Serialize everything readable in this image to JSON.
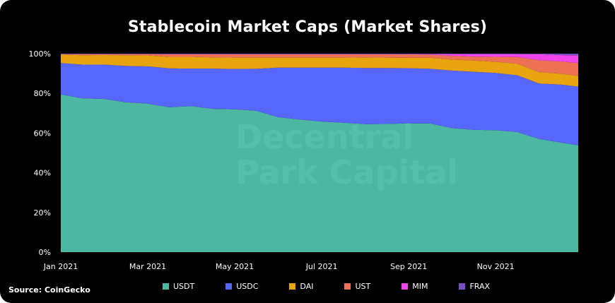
{
  "chart_data": {
    "type": "area",
    "stacked": true,
    "title": "Stablecoin Market Caps (Market Shares)",
    "source": "Source: CoinGecko",
    "watermark": [
      "Decentral",
      "Park Capital"
    ],
    "xlabel": "",
    "ylabel": "",
    "ylim": [
      0,
      100
    ],
    "y_ticks": [
      "0%",
      "20%",
      "40%",
      "60%",
      "80%",
      "100%"
    ],
    "x_tick_labels": [
      "Jan 2021",
      "Mar 2021",
      "May 2021",
      "Jul 2021",
      "Sep 2021",
      "Nov 2021"
    ],
    "x_tick_positions": [
      0,
      2,
      4,
      6,
      8,
      10
    ],
    "x": [
      0,
      0.5,
      1,
      1.5,
      2,
      2.5,
      3,
      3.5,
      4,
      4.5,
      5,
      5.5,
      6,
      6.5,
      7,
      7.5,
      8,
      8.5,
      9,
      9.5,
      10,
      10.5,
      11,
      11.5,
      11.9
    ],
    "series": [
      {
        "name": "USDT",
        "color": "#4db8a2",
        "values": [
          79.5,
          77.5,
          77.2,
          75.5,
          74.8,
          73.0,
          73.6,
          72.2,
          72.0,
          71.2,
          68.0,
          66.8,
          65.8,
          65.2,
          64.5,
          64.6,
          64.9,
          64.8,
          62.5,
          61.6,
          61.5,
          60.5,
          57.0,
          55.2,
          53.8
        ]
      },
      {
        "name": "USDC",
        "color": "#5766fb",
        "values": [
          15.8,
          17.0,
          17.3,
          18.3,
          18.8,
          19.6,
          18.9,
          20.3,
          20.3,
          21.2,
          25.0,
          26.2,
          27.2,
          27.8,
          28.3,
          28.2,
          27.8,
          27.6,
          29.0,
          29.3,
          28.8,
          28.6,
          28.0,
          29.2,
          29.6
        ]
      },
      {
        "name": "DAI",
        "color": "#e7a40c",
        "values": [
          4.2,
          4.7,
          4.8,
          5.4,
          5.5,
          5.8,
          5.9,
          5.6,
          5.7,
          5.6,
          5.0,
          5.0,
          5.0,
          5.0,
          5.3,
          5.2,
          5.2,
          5.5,
          5.5,
          5.6,
          5.6,
          5.8,
          5.7,
          5.5,
          5.4
        ]
      },
      {
        "name": "UST",
        "color": "#ee7155",
        "values": [
          0.3,
          0.6,
          0.5,
          0.6,
          0.7,
          1.3,
          1.3,
          1.6,
          1.7,
          1.7,
          1.7,
          1.7,
          1.7,
          1.7,
          1.6,
          1.7,
          1.8,
          1.6,
          1.9,
          2.0,
          2.5,
          3.4,
          6.0,
          6.2,
          6.5
        ]
      },
      {
        "name": "MIM",
        "color": "#f045ea",
        "values": [
          0.0,
          0.0,
          0.0,
          0.0,
          0.0,
          0.0,
          0.0,
          0.0,
          0.0,
          0.0,
          0.0,
          0.0,
          0.0,
          0.0,
          0.0,
          0.0,
          0.1,
          0.3,
          0.9,
          1.3,
          1.4,
          1.5,
          3.0,
          3.2,
          3.8
        ]
      },
      {
        "name": "FRAX",
        "color": "#7a4fc2",
        "values": [
          0.2,
          0.2,
          0.2,
          0.2,
          0.2,
          0.3,
          0.3,
          0.3,
          0.3,
          0.3,
          0.3,
          0.3,
          0.3,
          0.3,
          0.3,
          0.3,
          0.2,
          0.2,
          0.2,
          0.2,
          0.2,
          0.2,
          0.3,
          0.7,
          0.9
        ]
      }
    ]
  }
}
